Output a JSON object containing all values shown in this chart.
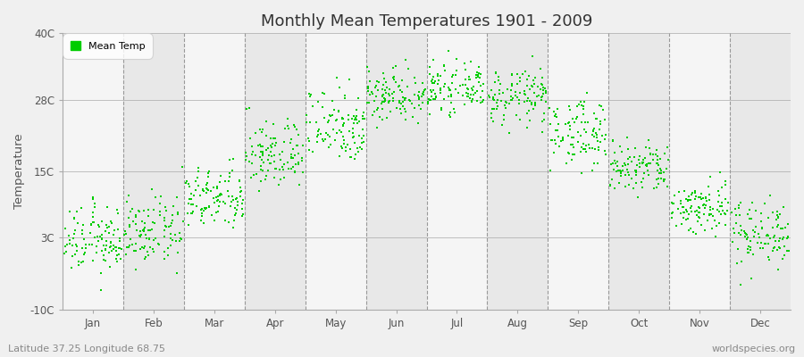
{
  "title": "Monthly Mean Temperatures 1901 - 2009",
  "ylabel": "Temperature",
  "subtitle_left": "Latitude 37.25 Longitude 68.75",
  "subtitle_right": "worldspecies.org",
  "yticks": [
    -10,
    3,
    15,
    28,
    40
  ],
  "ytick_labels": [
    "-10C",
    "3C",
    "15C",
    "28C",
    "40C"
  ],
  "ylim": [
    -10,
    40
  ],
  "background_color": "#f0f0f0",
  "plot_bg_color_odd": "#e8e8e8",
  "plot_bg_color_even": "#f5f5f5",
  "dot_color": "#00cc00",
  "dot_size": 3,
  "legend_label": "Mean Temp",
  "month_names": [
    "Jan",
    "Feb",
    "Mar",
    "Apr",
    "May",
    "Jun",
    "Jul",
    "Aug",
    "Sep",
    "Oct",
    "Nov",
    "Dec"
  ],
  "monthly_means": [
    2.5,
    4.0,
    10.0,
    18.0,
    23.5,
    29.0,
    30.0,
    28.5,
    22.0,
    15.5,
    8.5,
    4.0
  ],
  "monthly_stds": [
    3.0,
    3.0,
    2.8,
    3.2,
    3.5,
    2.5,
    2.0,
    2.5,
    3.0,
    2.5,
    2.5,
    3.0
  ],
  "n_years": 109,
  "seed": 12345
}
